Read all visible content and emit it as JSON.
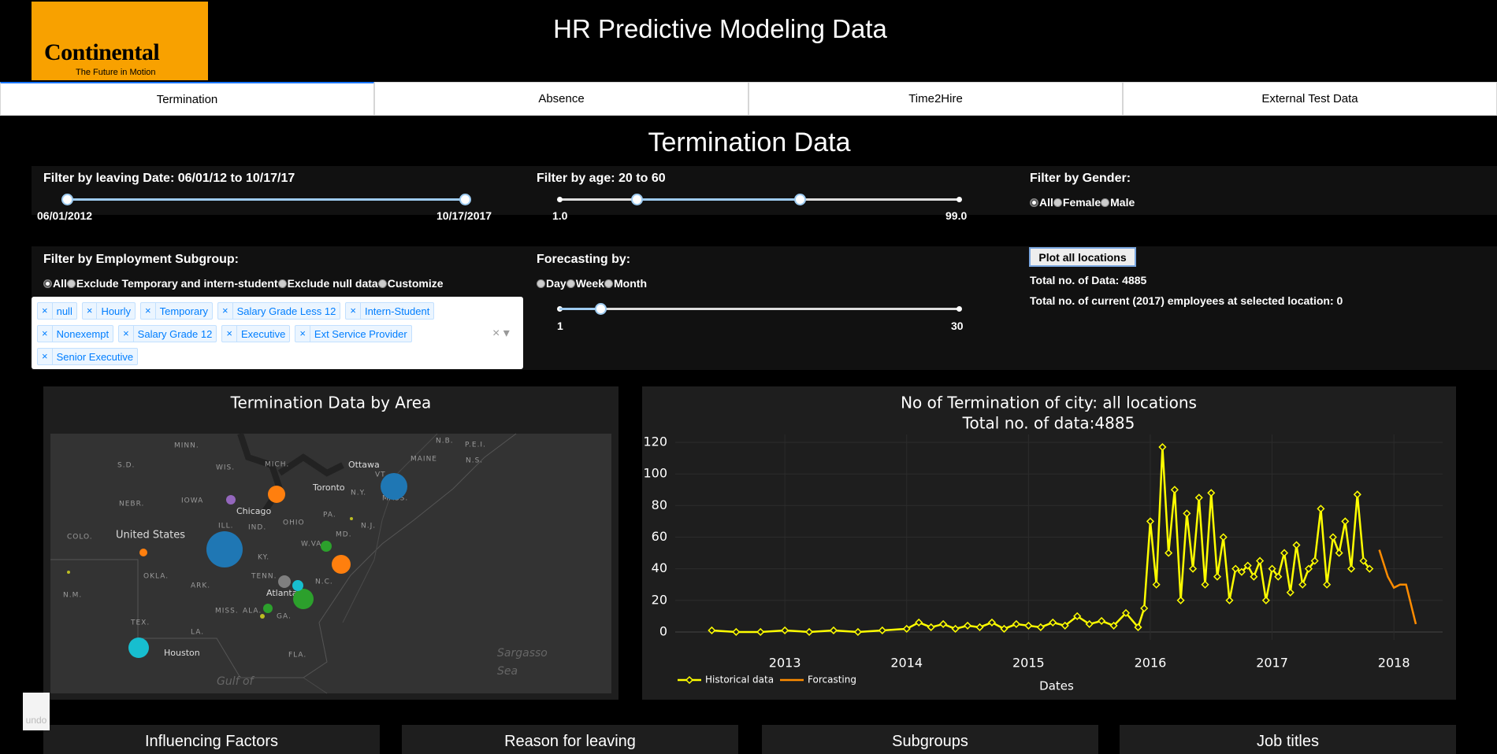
{
  "header": {
    "title": "HR Predictive Modeling Data",
    "logo": {
      "name": "Continental",
      "tagline": "The Future in Motion"
    }
  },
  "tabs": [
    "Termination",
    "Absence",
    "Time2Hire",
    "External Test Data"
  ],
  "section_title": "Termination Data",
  "filters": {
    "date": {
      "label": "Filter by leaving Date: 06/01/12 to 10/17/17",
      "start_label": "06/01/2012",
      "end_label": "10/17/2017"
    },
    "age": {
      "label": "Filter by age: 20 to 60",
      "min": 1,
      "max": 99,
      "min_label": "1.0",
      "max_label": "99.0",
      "values": [
        20,
        60
      ]
    },
    "gender": {
      "label": "Filter by Gender:",
      "options": [
        "All",
        "Female",
        "Male"
      ],
      "selected": 0
    },
    "subgroup": {
      "label": "Filter by Employment Subgroup:",
      "options": [
        "All",
        "Exclude Temporary and intern-student",
        "Exclude null data",
        "Customize"
      ],
      "selected": 0,
      "tags": [
        "null",
        "Hourly",
        "Temporary",
        "Salary Grade Less 12",
        "Intern-Student",
        "Nonexempt",
        "Salary Grade 12",
        "Executive",
        "Ext Service Provider",
        "Senior Executive"
      ]
    },
    "forecast": {
      "label": "Forecasting by:",
      "options": [
        "Day",
        "Week",
        "Month"
      ],
      "min": 1,
      "max": 30,
      "value": 4
    }
  },
  "info": {
    "button": "Plot all locations",
    "total_data": "Total no. of Data: 4885",
    "current_employees": "Total no. of current (2017) employees at selected location: 0"
  },
  "map": {
    "title": "Termination Data by Area",
    "labels": [
      "MINN.",
      "WIS.",
      "MICH.",
      "S.D.",
      "Ottawa",
      "MAINE",
      "N.B.",
      "P.E.I.",
      "N.S.",
      "VT",
      "Toronto",
      "N.Y.",
      "MASS.",
      "NEBR.",
      "IOWA",
      "Chicago",
      "PA.",
      "N.J.",
      "OHIO",
      "ILL.",
      "IND.",
      "United States",
      "COLO.",
      "MD.",
      "W.VA.",
      "KY.",
      "OKLA.",
      "ARK.",
      "TENN.",
      "N.C.",
      "N.M.",
      "Atlanta",
      "MISS.",
      "ALA.",
      "GA.",
      "TEX.",
      "LA.",
      "Houston",
      "FLA.",
      "Sargasso",
      "Sea",
      "Gulf of"
    ]
  },
  "chart_data": {
    "type": "line",
    "title": "No of Termination of city: all locations",
    "subtitle": "Total no. of data:4885",
    "x_label": "Dates",
    "xlim": [
      2012.1,
      2018.4
    ],
    "xticks": [
      2013,
      2014,
      2015,
      2016,
      2017,
      2018
    ],
    "ylim": [
      -5,
      125
    ],
    "yticks": [
      0,
      20,
      40,
      60,
      80,
      100,
      120
    ],
    "grid": true,
    "legend": "bottom-left",
    "series": [
      {
        "name": "Historical data",
        "color": "#ffff00",
        "markers": true,
        "x": [
          2012.4,
          2012.6,
          2012.8,
          2013.0,
          2013.2,
          2013.4,
          2013.6,
          2013.8,
          2014.0,
          2014.1,
          2014.2,
          2014.3,
          2014.4,
          2014.5,
          2014.6,
          2014.7,
          2014.8,
          2014.9,
          2015.0,
          2015.1,
          2015.2,
          2015.3,
          2015.4,
          2015.5,
          2015.6,
          2015.7,
          2015.8,
          2015.9,
          2015.95,
          2016.0,
          2016.05,
          2016.1,
          2016.15,
          2016.2,
          2016.25,
          2016.3,
          2016.35,
          2016.4,
          2016.45,
          2016.5,
          2016.55,
          2016.6,
          2016.65,
          2016.7,
          2016.75,
          2016.8,
          2016.85,
          2016.9,
          2016.95,
          2017.0,
          2017.05,
          2017.1,
          2017.15,
          2017.2,
          2017.25,
          2017.3,
          2017.35,
          2017.4,
          2017.45,
          2017.5,
          2017.55,
          2017.6,
          2017.65,
          2017.7,
          2017.75,
          2017.8
        ],
        "values": [
          1,
          0,
          0,
          1,
          0,
          1,
          0,
          1,
          2,
          6,
          3,
          5,
          2,
          4,
          3,
          6,
          2,
          5,
          4,
          3,
          6,
          4,
          10,
          5,
          7,
          4,
          12,
          3,
          15,
          70,
          30,
          117,
          50,
          90,
          20,
          75,
          40,
          85,
          30,
          88,
          35,
          60,
          20,
          40,
          38,
          42,
          35,
          45,
          20,
          40,
          35,
          50,
          25,
          55,
          30,
          40,
          45,
          78,
          30,
          60,
          50,
          70,
          40,
          87,
          45,
          40
        ]
      },
      {
        "name": "Forcasting",
        "color": "#ff8c00",
        "markers": false,
        "x": [
          2017.88,
          2017.95,
          2018.0,
          2018.05,
          2018.1,
          2018.18
        ],
        "values": [
          52,
          35,
          28,
          30,
          30,
          5
        ]
      }
    ]
  },
  "panels": [
    "Influencing Factors",
    "Reason for leaving",
    "Subgroups",
    "Job titles"
  ],
  "undo": "undo"
}
